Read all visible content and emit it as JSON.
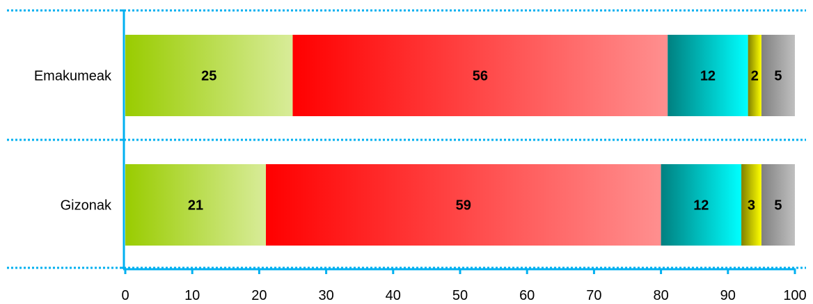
{
  "chart_data": {
    "type": "bar",
    "orientation": "horizontal",
    "stacked": true,
    "categories": [
      "Emakumeak",
      "Gizonak"
    ],
    "series": [
      {
        "values": [
          25,
          21
        ],
        "color": "#99cc00",
        "gradient": [
          "#99cc00",
          "#d8ec99"
        ]
      },
      {
        "values": [
          56,
          59
        ],
        "color": "#ff0000",
        "gradient": [
          "#ff0000",
          "#ff8f8f"
        ]
      },
      {
        "values": [
          12,
          12
        ],
        "color": "#00ffff",
        "gradient": [
          "#008080",
          "#00ffff"
        ]
      },
      {
        "values": [
          2,
          3
        ],
        "color": "#ffff00",
        "gradient": [
          "#808000",
          "#ffff00"
        ]
      },
      {
        "values": [
          5,
          5
        ],
        "color": "#c0c0c0",
        "gradient": [
          "#808080",
          "#c0c0c0"
        ]
      }
    ],
    "xlim": [
      0,
      100
    ],
    "xticks": [
      "0",
      "10",
      "20",
      "30",
      "40",
      "50",
      "60",
      "70",
      "80",
      "90",
      "100"
    ],
    "xlabel": "",
    "ylabel": "",
    "title": "",
    "legend": "none",
    "grid": false,
    "axis_color": "#00b0f0",
    "separator_color": "#00b0f0"
  }
}
